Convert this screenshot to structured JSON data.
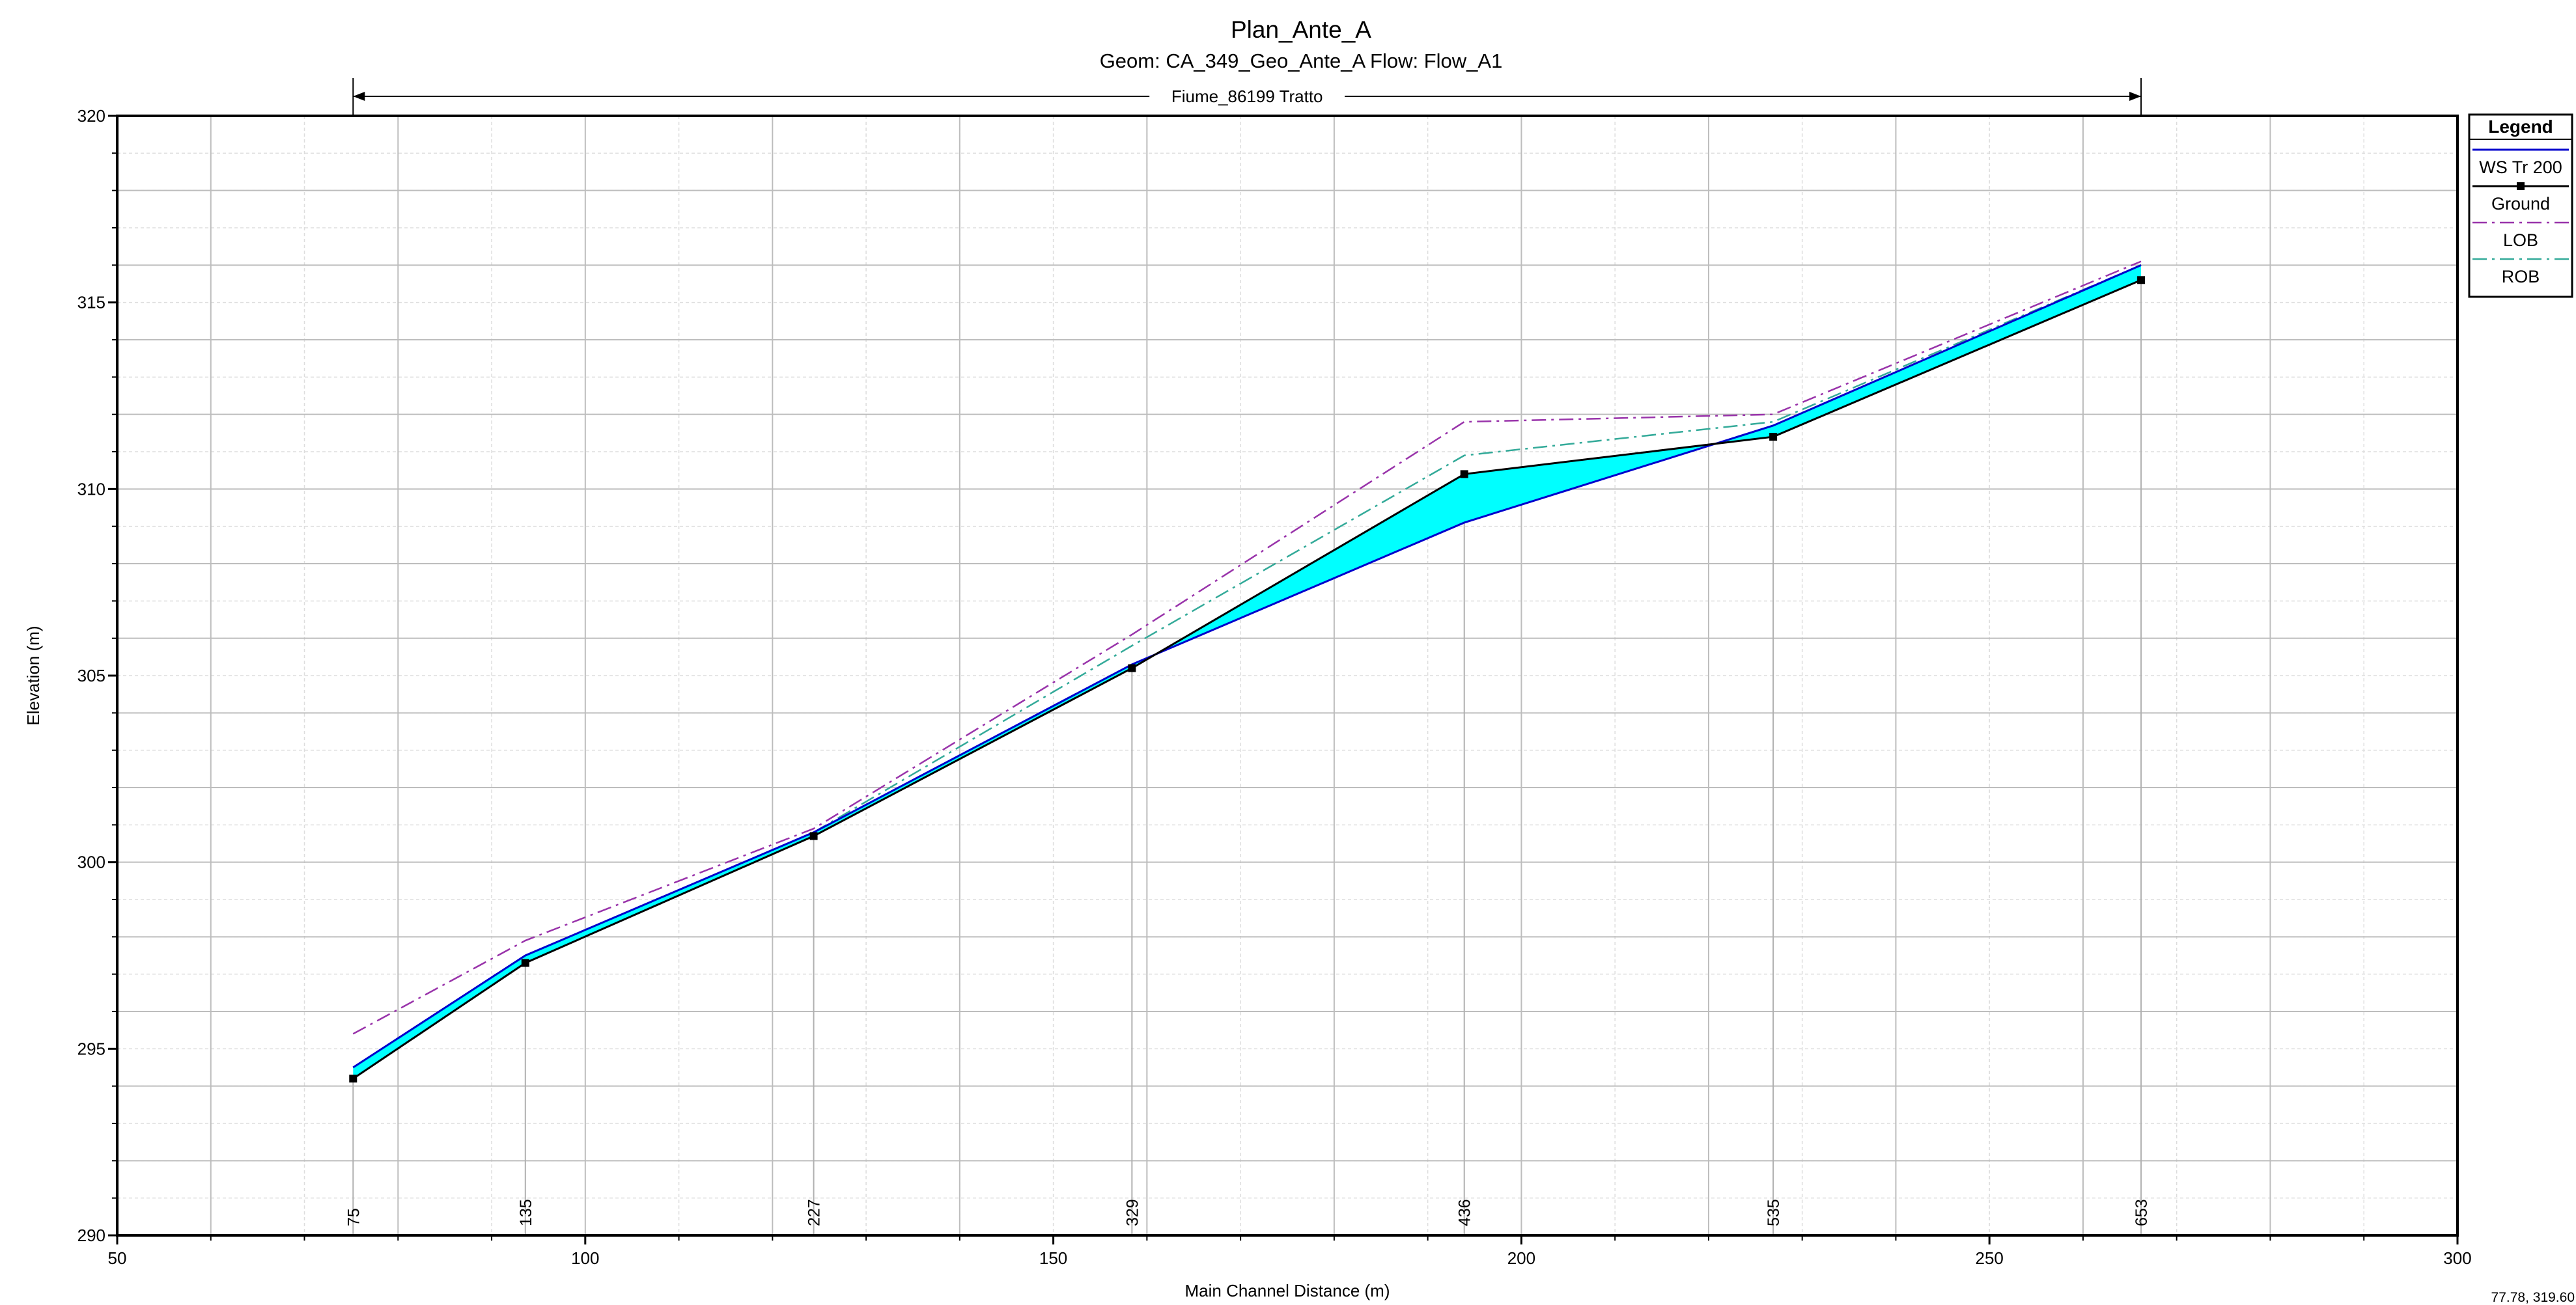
{
  "chart_data": {
    "type": "line",
    "title": "Plan_Ante_A",
    "subtitle": "Geom: CA_349_Geo_Ante_A   Flow: Flow_A1",
    "reach_label": "Fiume_86199 Tratto",
    "xlabel": "Main Channel Distance (m)",
    "ylabel": "Elevation (m)",
    "xlim": [
      50,
      300
    ],
    "ylim": [
      290,
      320
    ],
    "x_ticks": [
      50,
      100,
      150,
      200,
      250,
      300
    ],
    "y_ticks": [
      290,
      295,
      300,
      305,
      310,
      315,
      320
    ],
    "grid": true,
    "legend_position": "right",
    "legend_title": "Legend",
    "stations": [
      {
        "label": "75",
        "x": 75.2
      },
      {
        "label": "135",
        "x": 93.6
      },
      {
        "label": "227",
        "x": 124.4
      },
      {
        "label": "329",
        "x": 158.4
      },
      {
        "label": "436",
        "x": 193.9
      },
      {
        "label": "535",
        "x": 226.9
      },
      {
        "label": "653",
        "x": 266.2
      }
    ],
    "series": [
      {
        "name": "WS  Tr 200",
        "color": "#0000cc",
        "style": "solid",
        "x": [
          75.2,
          93.6,
          124.4,
          158.4,
          193.9,
          226.9,
          266.2
        ],
        "values": [
          294.5,
          297.5,
          300.8,
          305.3,
          309.1,
          311.7,
          316.0
        ]
      },
      {
        "name": "Ground",
        "color": "#000000",
        "style": "solid-square-markers",
        "x": [
          75.2,
          93.6,
          124.4,
          158.4,
          193.9,
          226.9,
          266.2
        ],
        "values": [
          294.2,
          297.3,
          300.7,
          305.2,
          310.4,
          311.4,
          315.6
        ]
      },
      {
        "name": "LOB",
        "color": "#9933aa",
        "style": "dash-dot",
        "x": [
          75.2,
          93.6,
          124.4,
          158.4,
          193.9,
          226.9,
          266.2
        ],
        "values": [
          295.4,
          297.9,
          300.9,
          306.1,
          311.8,
          312.0,
          316.1
        ]
      },
      {
        "name": "ROB",
        "color": "#33aa99",
        "style": "dash-dot",
        "x": [
          75.2,
          93.6,
          124.4,
          158.4,
          193.9,
          226.9,
          266.2
        ],
        "values": [
          294.5,
          297.5,
          300.8,
          305.8,
          310.9,
          311.8,
          316.0
        ]
      }
    ],
    "fill_color": "#00ffff"
  },
  "cursor_readout": "77.78, 319.60"
}
